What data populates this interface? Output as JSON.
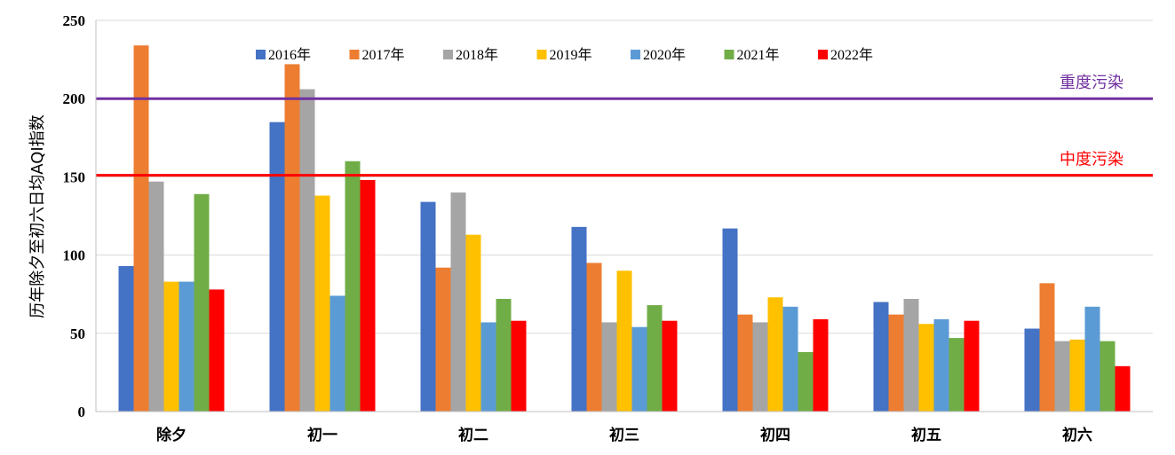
{
  "chart_data": {
    "type": "bar",
    "ylabel": "历年除夕至初六日均AQI指数",
    "xlabel": "",
    "ylim": [
      0,
      250
    ],
    "yticks": [
      0,
      50,
      100,
      150,
      200,
      250
    ],
    "categories": [
      "除夕",
      "初一",
      "初二",
      "初三",
      "初四",
      "初五",
      "初六"
    ],
    "legend_position": "top",
    "grid": "horizontal",
    "series": [
      {
        "name": "2016年",
        "color": "#4472C4",
        "values": [
          93,
          185,
          134,
          118,
          117,
          70,
          53
        ]
      },
      {
        "name": "2017年",
        "color": "#ED7D31",
        "values": [
          234,
          222,
          92,
          95,
          62,
          62,
          82
        ]
      },
      {
        "name": "2018年",
        "color": "#A5A5A5",
        "values": [
          147,
          206,
          140,
          57,
          57,
          72,
          45
        ]
      },
      {
        "name": "2019年",
        "color": "#FFC000",
        "values": [
          83,
          138,
          113,
          90,
          73,
          56,
          46
        ]
      },
      {
        "name": "2020年",
        "color": "#5B9BD5",
        "values": [
          83,
          74,
          57,
          54,
          67,
          59,
          67
        ]
      },
      {
        "name": "2021年",
        "color": "#70AD47",
        "values": [
          139,
          160,
          72,
          68,
          38,
          47,
          45
        ]
      },
      {
        "name": "2022年",
        "color": "#FF0000",
        "values": [
          78,
          148,
          58,
          58,
          59,
          58,
          29
        ]
      }
    ],
    "reference_lines": [
      {
        "label": "重度污染",
        "value": 200,
        "color": "#7030A0"
      },
      {
        "label": "中度污染",
        "value": 151,
        "color": "#FF0000"
      }
    ]
  }
}
